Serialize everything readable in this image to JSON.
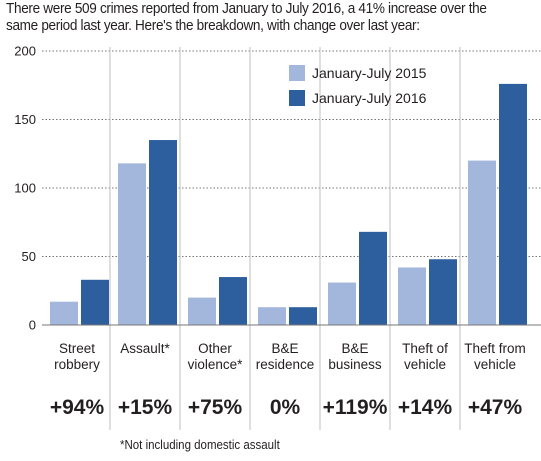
{
  "intro": "There were 509 crimes reported from January to July 2016, a 41% increase over the same period last year. Here's the breakdown, with change over last year:",
  "footnote": "*Not including domestic assault",
  "colors": {
    "series_2015": "#a3b7dc",
    "series_2016": "#2d5f9f",
    "grid": "#777777",
    "divider": "#bfbfbf"
  },
  "chart_data": {
    "type": "bar",
    "categories": [
      [
        "Street",
        "robbery"
      ],
      [
        "Assault*"
      ],
      [
        "Other",
        "violence*"
      ],
      [
        "B&E",
        "residence"
      ],
      [
        "B&E",
        "business"
      ],
      [
        "Theft of",
        "vehicle"
      ],
      [
        "Theft from",
        "vehicle"
      ]
    ],
    "changes": [
      "+94%",
      "+15%",
      "+75%",
      "0%",
      "+119%",
      "+14%",
      "+47%"
    ],
    "series": [
      {
        "name": "January-July 2015",
        "values": [
          17,
          118,
          20,
          13,
          31,
          42,
          120
        ]
      },
      {
        "name": "January-July 2016",
        "values": [
          33,
          135,
          35,
          13,
          68,
          48,
          176
        ]
      }
    ],
    "yticks": [
      0,
      50,
      100,
      150,
      200
    ],
    "ylim": [
      0,
      200
    ],
    "grid": true,
    "legend_position": "top-right"
  }
}
